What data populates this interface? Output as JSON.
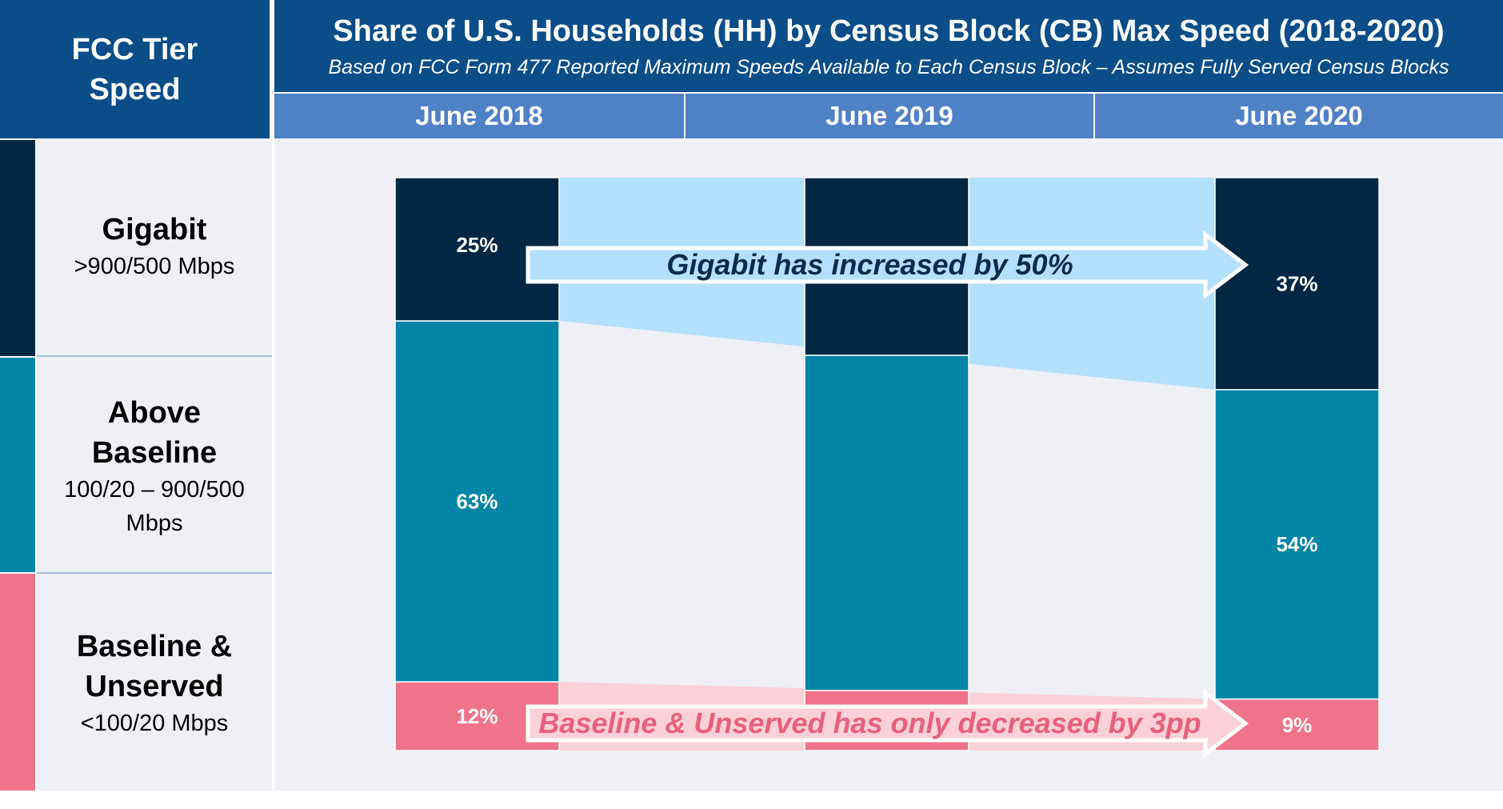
{
  "corner": {
    "line1": "FCC Tier",
    "line2": "Speed"
  },
  "header": {
    "title": "Share of U.S. Households (HH) by Census Block (CB) Max Speed (2018-2020)",
    "subtitle": "Based on FCC Form 477 Reported Maximum Speeds Available to Each Census Block – Assumes Fully Served Census Blocks"
  },
  "tiers": [
    {
      "name_line1": "Gigabit",
      "name_line2": "",
      "range_line1": ">900/500 Mbps",
      "range_line2": "",
      "color": "#002743"
    },
    {
      "name_line1": "Above",
      "name_line2": "Baseline",
      "range_line1": "100/20 – 900/500",
      "range_line2": "Mbps",
      "color": "#0085a6"
    },
    {
      "name_line1": "Baseline &",
      "name_line2": "Unserved",
      "range_line1": "<100/20 Mbps",
      "range_line2": "",
      "color": "#f07489"
    }
  ],
  "chart_data": {
    "type": "bar",
    "stacked": true,
    "categories": [
      "June 2018",
      "June 2019",
      "June 2020"
    ],
    "ylim": [
      0,
      100
    ],
    "series": [
      {
        "name": "Baseline & Unserved",
        "color": "#f07489",
        "values": [
          12,
          10.5,
          9
        ],
        "labels": [
          "12%",
          "",
          "9%"
        ]
      },
      {
        "name": "Above Baseline",
        "color": "#0085a6",
        "values": [
          63,
          58.5,
          54
        ],
        "labels": [
          "63%",
          "",
          "54%"
        ]
      },
      {
        "name": "Gigabit",
        "color": "#002743",
        "values": [
          25,
          31,
          37
        ],
        "labels": [
          "25%",
          "",
          "37%"
        ]
      }
    ],
    "annotations": [
      {
        "text": "Gigabit has increased by 50%",
        "series": "Gigabit",
        "fill": "#b3e0fd",
        "text_color": "#0c2a4c"
      },
      {
        "text": "Baseline & Unserved has only decreased by 3pp",
        "series": "Baseline & Unserved",
        "fill": "#fbd0d8",
        "text_color": "#e8607a"
      }
    ]
  }
}
